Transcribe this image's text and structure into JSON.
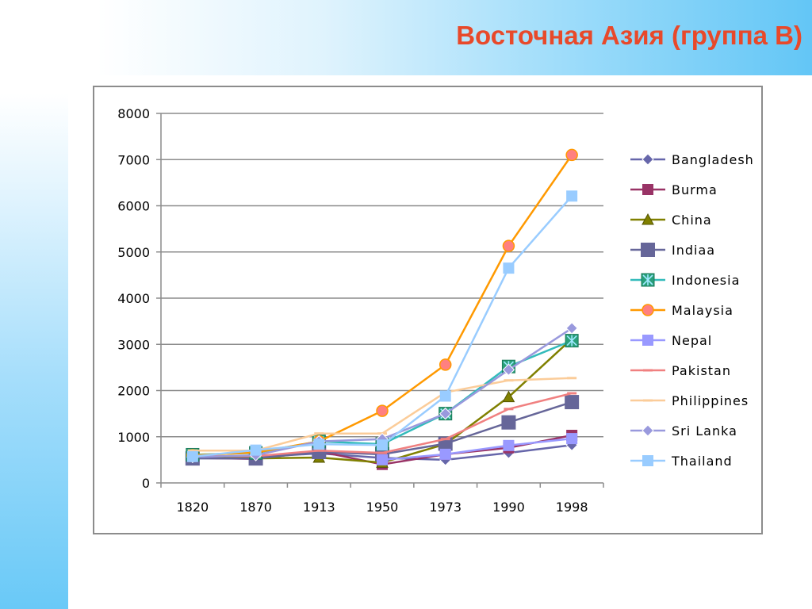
{
  "slide": {
    "title": "Восточная Азия (группа B)"
  },
  "chart_data": {
    "type": "line",
    "x": [
      "1820",
      "1870",
      "1913",
      "1950",
      "1973",
      "1990",
      "1998"
    ],
    "ylim": [
      0,
      8000
    ],
    "yticks": [
      0,
      1000,
      2000,
      3000,
      4000,
      5000,
      6000,
      7000,
      8000
    ],
    "grid": "horizontal",
    "legend": "right",
    "series": [
      {
        "name": "Bangladesh",
        "color": "#6666aa",
        "marker": "diamond",
        "values": [
          580,
          560,
          640,
          540,
          500,
          650,
          820
        ]
      },
      {
        "name": "Burma",
        "color": "#993366",
        "marker": "square",
        "values": [
          540,
          520,
          685,
          400,
          620,
          760,
          1030
        ]
      },
      {
        "name": "China",
        "color": "#808000",
        "marker": "triangle",
        "values": [
          600,
          530,
          550,
          440,
          840,
          1860,
          3120
        ]
      },
      {
        "name": "Indiaa",
        "color": "#666699",
        "marker": "bigsquare",
        "values": [
          530,
          530,
          670,
          620,
          850,
          1310,
          1750
        ]
      },
      {
        "name": "Indonesia",
        "color": "#33bbbb",
        "marker": "xbox",
        "values": [
          610,
          650,
          900,
          840,
          1500,
          2520,
          3080
        ]
      },
      {
        "name": "Malaysia",
        "color": "#ff9900",
        "marker": "circle",
        "values": [
          600,
          660,
          900,
          1560,
          2560,
          5130,
          7100
        ]
      },
      {
        "name": "Nepal",
        "color": "#9999ff",
        "marker": "square",
        "values": null,
        "points": [
          [
            3,
            500
          ],
          [
            4,
            620
          ],
          [
            5,
            810
          ],
          [
            6,
            960
          ]
        ]
      },
      {
        "name": "Pakistan",
        "color": "#f08080",
        "marker": "dash",
        "values": [
          580,
          580,
          700,
          650,
          950,
          1600,
          1940
        ]
      },
      {
        "name": "Philippines",
        "color": "#fbcc99",
        "marker": "dash",
        "values": [
          700,
          700,
          1070,
          1070,
          1960,
          2220,
          2270
        ]
      },
      {
        "name": "Sri Lanka",
        "color": "#9999dd",
        "marker": "diamond",
        "values": [
          560,
          600,
          900,
          950,
          1500,
          2450,
          3350
        ]
      },
      {
        "name": "Thailand",
        "color": "#99ccff",
        "marker": "square",
        "values": [
          570,
          710,
          840,
          820,
          1880,
          4650,
          6210
        ]
      }
    ]
  }
}
